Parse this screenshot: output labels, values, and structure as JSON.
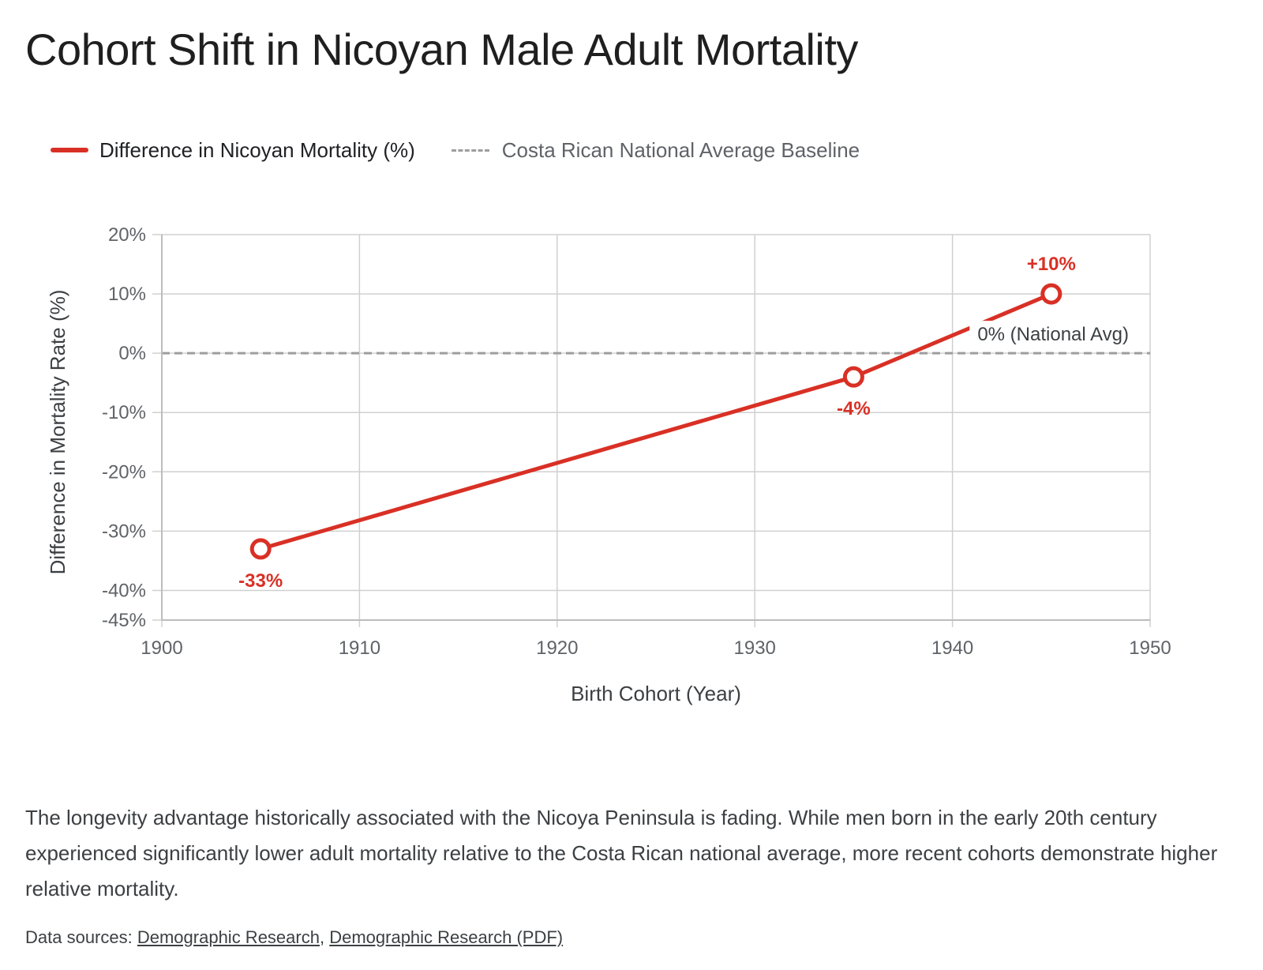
{
  "title": "Cohort Shift in Nicoyan Male Adult Mortality",
  "summary": "The longevity advantage historically associated with the Nicoya Peninsula is fading. While men born in the early 20th century experienced significantly lower adult mortality relative to the Costa Rican national average, more recent cohorts demonstrate higher relative mortality.",
  "sources": {
    "prefix": "Data sources:",
    "separator": ",",
    "links": [
      {
        "label": "Demographic Research"
      },
      {
        "label": "Demographic Research (PDF)"
      }
    ]
  },
  "chart_data": {
    "type": "line",
    "xlabel": "Birth Cohort (Year)",
    "ylabel": "Difference in Mortality Rate (%)",
    "xlim": [
      1900,
      1950
    ],
    "ylim": [
      -45,
      20
    ],
    "x_ticks": [
      1900,
      1910,
      1920,
      1930,
      1940,
      1950
    ],
    "x_tick_labels": [
      "1900",
      "1910",
      "1920",
      "1930",
      "1940",
      "1950"
    ],
    "y_ticks": [
      20,
      10,
      0,
      -10,
      -20,
      -30,
      -40,
      -45
    ],
    "y_tick_labels": [
      "20%",
      "10%",
      "0%",
      "-10%",
      "-20%",
      "-30%",
      "-40%",
      "-45%"
    ],
    "grid": true,
    "legend_position": "top-left",
    "series": [
      {
        "name": "Difference in Nicoyan Mortality (%)",
        "color": "#d93025",
        "x": [
          1905,
          1935,
          1945
        ],
        "y": [
          -33,
          -4,
          10
        ],
        "point_labels": [
          "-33%",
          "-4%",
          "+10%"
        ]
      }
    ],
    "baseline": {
      "name": "Costa Rican National Average Baseline",
      "value": 0,
      "color": "#9e9e9e",
      "label": "0% (National Avg)"
    }
  }
}
